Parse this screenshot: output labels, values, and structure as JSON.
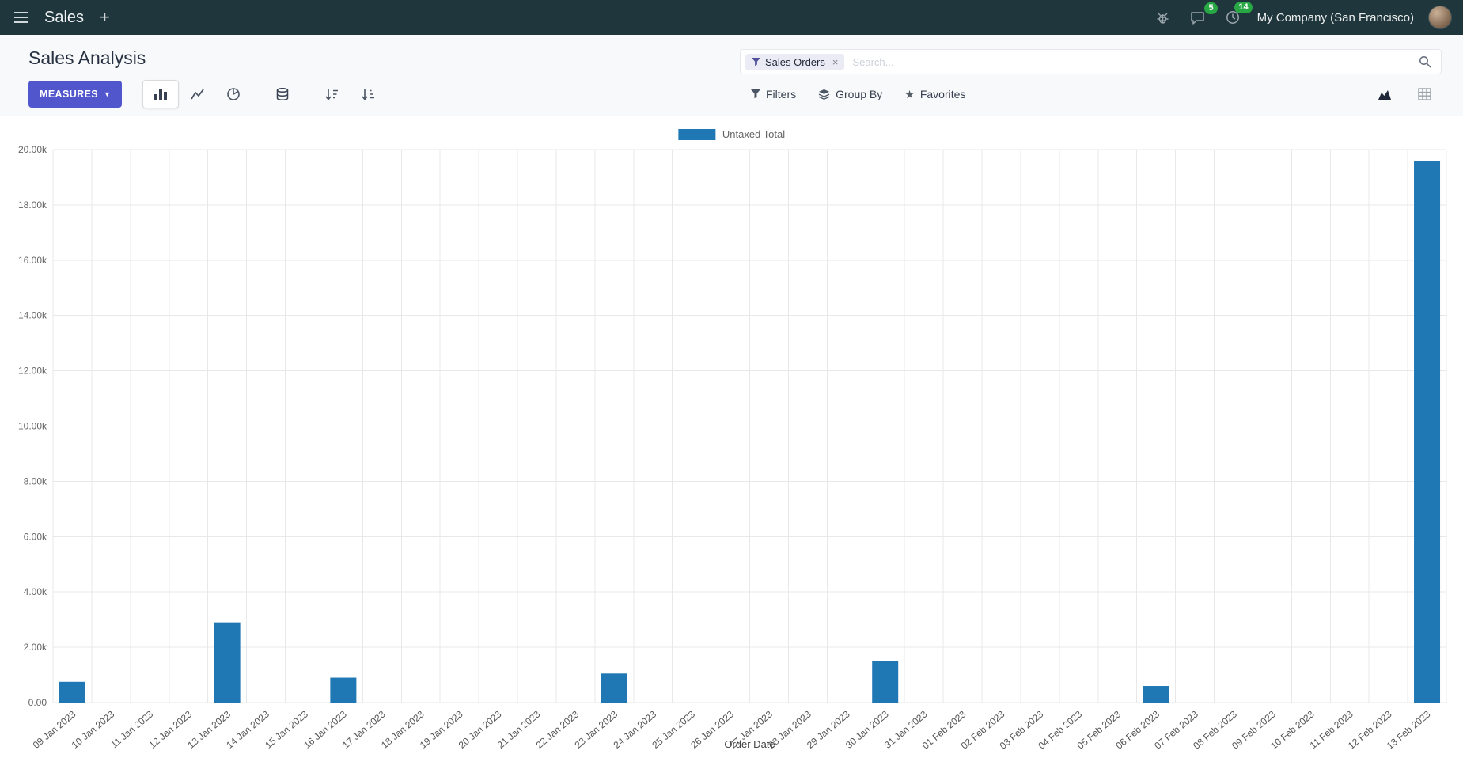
{
  "navbar": {
    "app_title": "Sales",
    "company": "My Company (San Francisco)",
    "messages_badge": "5",
    "activities_badge": "14"
  },
  "control_panel": {
    "breadcrumb": "Sales Analysis",
    "measures_label": "MEASURES",
    "filters_label": "Filters",
    "group_by_label": "Group By",
    "favorites_label": "Favorites",
    "search": {
      "facet": "Sales Orders",
      "placeholder": "Search..."
    }
  },
  "glyphs": {
    "plus": "+",
    "caret_down": "▼",
    "star": "★",
    "facet_remove": "×"
  },
  "colors": {
    "navbar_bg": "#1f363d",
    "primary_button": "#5156cd",
    "badge_green": "#28a745",
    "bar_blue": "#1f77b4"
  },
  "chart_data": {
    "type": "bar",
    "title": "",
    "legend": [
      {
        "label": "Untaxed Total",
        "color": "#1f77b4"
      }
    ],
    "legend_position": "top",
    "grid": true,
    "xlabel": "Order Date",
    "ylabel": "",
    "ylim": [
      0,
      20000
    ],
    "y_tick_labels": [
      "0.00",
      "2.00k",
      "4.00k",
      "6.00k",
      "8.00k",
      "10.00k",
      "12.00k",
      "14.00k",
      "16.00k",
      "18.00k",
      "20.00k"
    ],
    "categories": [
      "09 Jan 2023",
      "10 Jan 2023",
      "11 Jan 2023",
      "12 Jan 2023",
      "13 Jan 2023",
      "14 Jan 2023",
      "15 Jan 2023",
      "16 Jan 2023",
      "17 Jan 2023",
      "18 Jan 2023",
      "19 Jan 2023",
      "20 Jan 2023",
      "21 Jan 2023",
      "22 Jan 2023",
      "23 Jan 2023",
      "24 Jan 2023",
      "25 Jan 2023",
      "26 Jan 2023",
      "27 Jan 2023",
      "28 Jan 2023",
      "29 Jan 2023",
      "30 Jan 2023",
      "31 Jan 2023",
      "01 Feb 2023",
      "02 Feb 2023",
      "03 Feb 2023",
      "04 Feb 2023",
      "05 Feb 2023",
      "06 Feb 2023",
      "07 Feb 2023",
      "08 Feb 2023",
      "09 Feb 2023",
      "10 Feb 2023",
      "11 Feb 2023",
      "12 Feb 2023",
      "13 Feb 2023"
    ],
    "values": [
      750,
      0,
      0,
      0,
      2900,
      0,
      0,
      900,
      0,
      0,
      0,
      0,
      0,
      0,
      1050,
      0,
      0,
      0,
      0,
      0,
      0,
      1500,
      0,
      0,
      0,
      0,
      0,
      0,
      600,
      0,
      0,
      0,
      0,
      0,
      0,
      19600
    ]
  }
}
